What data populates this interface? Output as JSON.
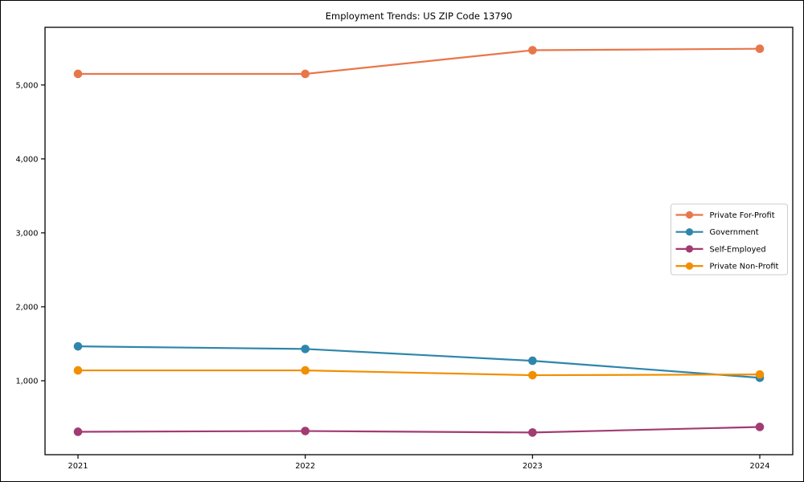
{
  "figure": {
    "background_color": "#ffffff",
    "border_color": "#000000"
  },
  "chart_data": {
    "type": "line",
    "title": "Employment Trends: US ZIP Code 13790",
    "xlabel": "",
    "ylabel": "",
    "categories": [
      "2021",
      "2022",
      "2023",
      "2024"
    ],
    "series": [
      {
        "name": "Private For-Profit",
        "color": "#e8764b",
        "values": [
          5150,
          5150,
          5470,
          5490
        ]
      },
      {
        "name": "Government",
        "color": "#2e86ab",
        "values": [
          1465,
          1430,
          1270,
          1040
        ]
      },
      {
        "name": "Self-Employed",
        "color": "#a23b72",
        "values": [
          310,
          320,
          300,
          375
        ]
      },
      {
        "name": "Private Non-Profit",
        "color": "#f18f01",
        "values": [
          1140,
          1140,
          1075,
          1085
        ]
      }
    ],
    "yticks": [
      1000,
      2000,
      3000,
      4000,
      5000
    ],
    "ytick_labels": [
      "1,000",
      "2,000",
      "3,000",
      "4,000",
      "5,000"
    ],
    "xtick_labels": [
      "2021",
      "2022",
      "2023",
      "2024"
    ],
    "ylim": [
      0,
      5780
    ],
    "grid": false,
    "marker": "circle",
    "legend": {
      "position": "center right",
      "entries": [
        "Private For-Profit",
        "Government",
        "Self-Employed",
        "Private Non-Profit"
      ]
    }
  }
}
